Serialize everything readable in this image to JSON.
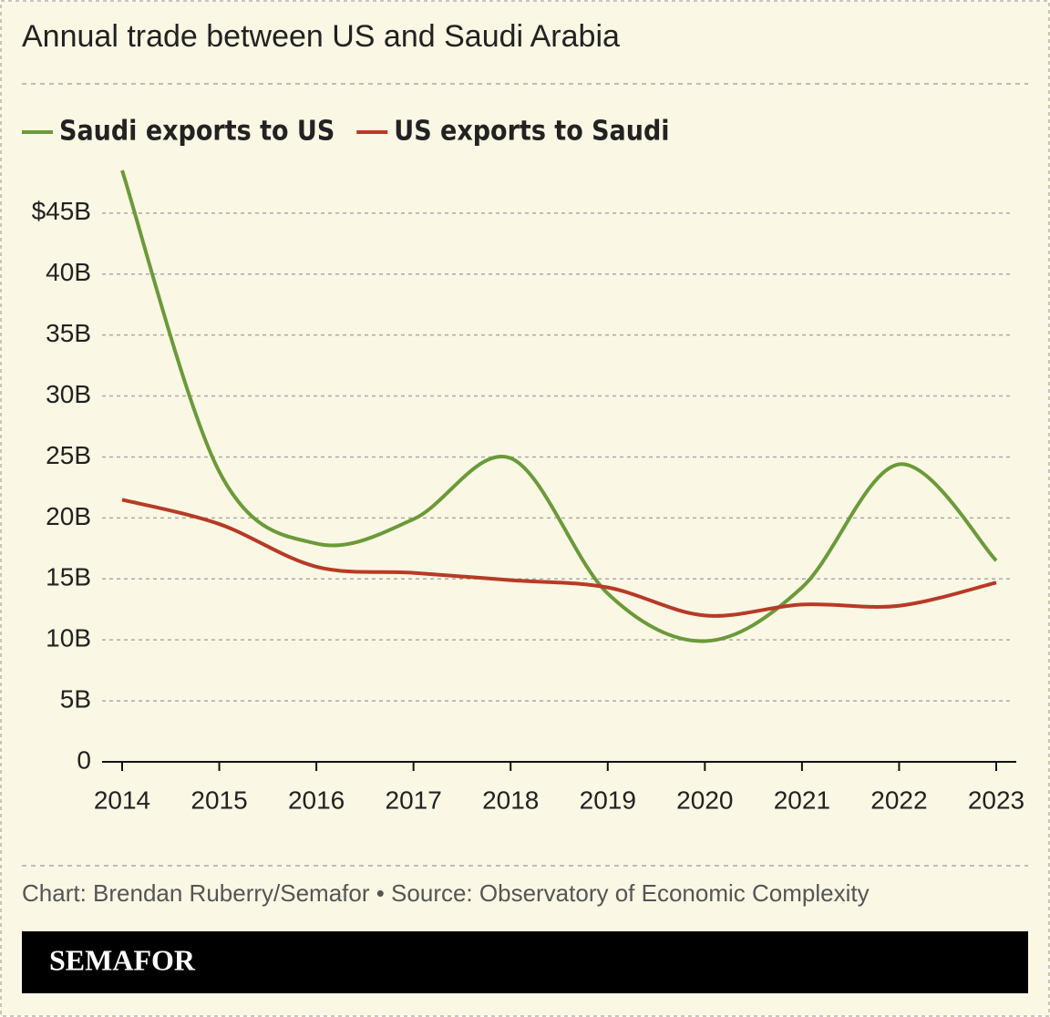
{
  "chart_data": {
    "type": "line",
    "title": "Annual trade between US and Saudi Arabia",
    "categories": [
      "2014",
      "2015",
      "2016",
      "2017",
      "2018",
      "2019",
      "2020",
      "2021",
      "2022",
      "2023"
    ],
    "series": [
      {
        "name": "Saudi exports to US",
        "color": "#6b9a3a",
        "values": [
          48.5,
          23.8,
          17.9,
          19.9,
          24.9,
          13.8,
          9.9,
          14.3,
          24.4,
          16.5
        ]
      },
      {
        "name": "US exports to Saudi",
        "color": "#b83a26",
        "values": [
          21.5,
          19.5,
          16.0,
          15.5,
          14.9,
          14.3,
          12.0,
          12.9,
          12.8,
          14.7
        ]
      }
    ],
    "ylim": [
      0,
      48.5
    ],
    "yticks": [
      0,
      {
        "value": 5,
        "label": "5B"
      },
      {
        "value": 10,
        "label": "10B"
      },
      {
        "value": 15,
        "label": "15B"
      },
      {
        "value": 20,
        "label": "20B"
      },
      {
        "value": 25,
        "label": "25B"
      },
      {
        "value": 30,
        "label": "30B"
      },
      {
        "value": 35,
        "label": "35B"
      },
      {
        "value": 40,
        "label": "40B"
      },
      {
        "value": 45,
        "label": "$45B"
      }
    ],
    "grid": true,
    "source": "Chart: Brendan Ruberry/Semafor • Source: Observatory of Economic Complexity",
    "logo": "SEMAFOR"
  }
}
